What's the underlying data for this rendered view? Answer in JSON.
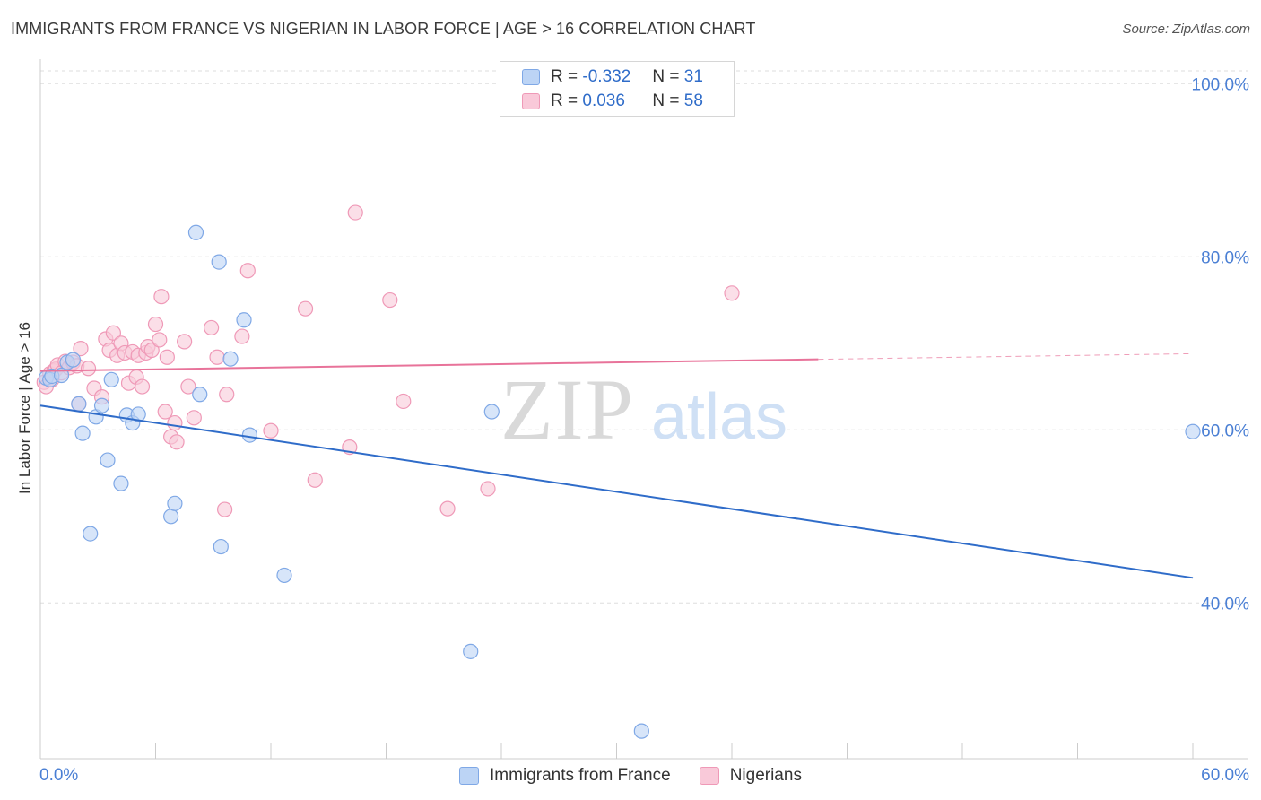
{
  "header": {
    "title": "IMMIGRANTS FROM FRANCE VS NIGERIAN IN LABOR FORCE | AGE > 16 CORRELATION CHART",
    "source": "Source: ZipAtlas.com"
  },
  "watermark": {
    "zip": "ZIP",
    "atlas": "atlas"
  },
  "legend": {
    "rows": [
      {
        "r_label": "R =",
        "r_value": "-0.332",
        "n_label": "N =",
        "n_value": "31"
      },
      {
        "r_label": "R =",
        "r_value": "0.036",
        "n_label": "N =",
        "n_value": "58"
      }
    ]
  },
  "bottom_legend": {
    "series1": "Immigrants from France",
    "series2": "Nigerians"
  },
  "colors": {
    "blue": "#2f6cc9",
    "blue_fill": "#bcd4f5",
    "blue_stroke": "#7fa8e6",
    "pink": "#e8739a",
    "pink_fill": "#f9c9d9",
    "pink_stroke": "#ef99b7",
    "axis_text": "#4a7fd4",
    "grid": "#dddddd"
  },
  "chart_data": {
    "type": "scatter",
    "title": "IMMIGRANTS FROM FRANCE VS NIGERIAN IN LABOR FORCE | AGE > 16 CORRELATION CHART",
    "xlabel": "",
    "ylabel": "In Labor Force | Age > 16",
    "xlim": [
      0,
      60
    ],
    "ylim": [
      22,
      102
    ],
    "x_tick_labels": [
      "0.0%",
      "60.0%"
    ],
    "y_ticks": [
      40,
      60,
      80,
      100
    ],
    "y_tick_labels": [
      "40.0%",
      "60.0%",
      "80.0%",
      "100.0%"
    ],
    "grid": true,
    "legend_position": "top-center",
    "series": [
      {
        "name": "Immigrants from France",
        "color": "#2f6cc9",
        "R": -0.332,
        "N": 31,
        "trend": {
          "x": [
            0,
            60
          ],
          "y": [
            62.8,
            42.9
          ],
          "dashed_from": null
        },
        "points": [
          [
            0.3,
            66.0
          ],
          [
            0.5,
            65.8
          ],
          [
            0.6,
            66.2
          ],
          [
            1.1,
            66.3
          ],
          [
            1.4,
            67.8
          ],
          [
            1.7,
            68.1
          ],
          [
            2.0,
            63.0
          ],
          [
            2.2,
            59.6
          ],
          [
            2.6,
            48.0
          ],
          [
            2.9,
            61.5
          ],
          [
            3.2,
            62.8
          ],
          [
            3.5,
            56.5
          ],
          [
            3.7,
            65.8
          ],
          [
            4.2,
            53.8
          ],
          [
            4.5,
            61.7
          ],
          [
            4.8,
            60.8
          ],
          [
            5.1,
            61.8
          ],
          [
            6.8,
            50.0
          ],
          [
            7.0,
            51.5
          ],
          [
            8.1,
            82.8
          ],
          [
            8.3,
            64.1
          ],
          [
            9.3,
            79.4
          ],
          [
            9.4,
            46.5
          ],
          [
            9.9,
            68.2
          ],
          [
            10.6,
            72.7
          ],
          [
            10.9,
            59.4
          ],
          [
            12.7,
            43.2
          ],
          [
            22.4,
            34.4
          ],
          [
            23.5,
            62.1
          ],
          [
            31.3,
            25.2
          ],
          [
            60.0,
            59.8
          ]
        ]
      },
      {
        "name": "Nigerians",
        "color": "#e8739a",
        "R": 0.036,
        "N": 58,
        "trend": {
          "x": [
            0,
            60
          ],
          "y": [
            66.8,
            68.8
          ],
          "dashed_from": 40.5
        },
        "points": [
          [
            0.2,
            65.5
          ],
          [
            0.3,
            65.0
          ],
          [
            0.5,
            66.5
          ],
          [
            0.6,
            65.8
          ],
          [
            0.7,
            66.8
          ],
          [
            0.8,
            67.0
          ],
          [
            0.9,
            67.5
          ],
          [
            1.1,
            66.6
          ],
          [
            1.3,
            67.9
          ],
          [
            1.5,
            67.2
          ],
          [
            1.7,
            67.8
          ],
          [
            1.9,
            67.4
          ],
          [
            2.0,
            63.0
          ],
          [
            2.1,
            69.4
          ],
          [
            2.5,
            67.1
          ],
          [
            2.8,
            64.8
          ],
          [
            3.2,
            63.8
          ],
          [
            3.4,
            70.5
          ],
          [
            3.6,
            69.2
          ],
          [
            3.8,
            71.2
          ],
          [
            4.0,
            68.6
          ],
          [
            4.2,
            70.0
          ],
          [
            4.4,
            68.9
          ],
          [
            4.6,
            65.4
          ],
          [
            4.8,
            69.0
          ],
          [
            5.0,
            66.1
          ],
          [
            5.1,
            68.6
          ],
          [
            5.3,
            65.0
          ],
          [
            5.5,
            68.9
          ],
          [
            5.6,
            69.6
          ],
          [
            5.8,
            69.2
          ],
          [
            6.0,
            72.2
          ],
          [
            6.2,
            70.4
          ],
          [
            6.3,
            75.4
          ],
          [
            6.5,
            62.1
          ],
          [
            6.6,
            68.4
          ],
          [
            6.8,
            59.2
          ],
          [
            7.0,
            60.8
          ],
          [
            7.1,
            58.6
          ],
          [
            7.5,
            70.2
          ],
          [
            7.7,
            65.0
          ],
          [
            8.0,
            61.4
          ],
          [
            8.9,
            71.8
          ],
          [
            9.2,
            68.4
          ],
          [
            9.7,
            64.1
          ],
          [
            10.5,
            70.8
          ],
          [
            10.8,
            78.4
          ],
          [
            12.0,
            59.9
          ],
          [
            13.8,
            74.0
          ],
          [
            14.3,
            54.2
          ],
          [
            16.1,
            58.0
          ],
          [
            16.4,
            85.1
          ],
          [
            18.2,
            75.0
          ],
          [
            18.9,
            63.3
          ],
          [
            21.2,
            50.9
          ],
          [
            23.3,
            53.2
          ],
          [
            36.0,
            75.8
          ],
          [
            9.6,
            50.8
          ]
        ]
      }
    ]
  }
}
